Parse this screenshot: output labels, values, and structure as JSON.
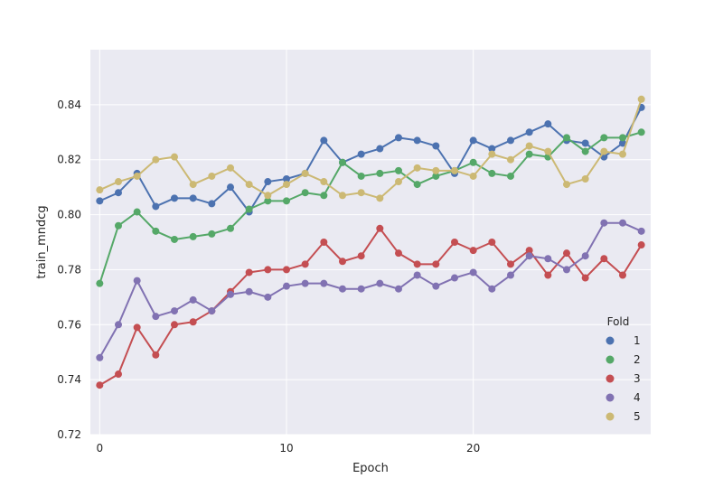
{
  "chart_data": {
    "type": "line",
    "xlabel": "Epoch",
    "ylabel": "train_mndcg",
    "xlim": [
      -0.5,
      29.5
    ],
    "ylim": [
      0.72,
      0.86
    ],
    "x_ticks": [
      0,
      10,
      20
    ],
    "y_ticks": [
      0.72,
      0.74,
      0.76,
      0.78,
      0.8,
      0.82,
      0.84
    ],
    "y_tick_labels": [
      "0.72",
      "0.74",
      "0.76",
      "0.78",
      "0.80",
      "0.82",
      "0.84"
    ],
    "grid": true,
    "background": "#eaeaf2",
    "legend": {
      "title": "Fold",
      "placement": "lower-right"
    },
    "x": [
      0,
      1,
      2,
      3,
      4,
      5,
      6,
      7,
      8,
      9,
      10,
      11,
      12,
      13,
      14,
      15,
      16,
      17,
      18,
      19,
      20,
      21,
      22,
      23,
      24,
      25,
      26,
      27,
      28,
      29
    ],
    "series": [
      {
        "name": "1",
        "color": "#4c72b0",
        "values": [
          0.805,
          0.808,
          0.815,
          0.803,
          0.806,
          0.806,
          0.804,
          0.81,
          0.801,
          0.812,
          0.813,
          0.815,
          0.827,
          0.819,
          0.822,
          0.824,
          0.828,
          0.827,
          0.825,
          0.815,
          0.827,
          0.824,
          0.827,
          0.83,
          0.833,
          0.827,
          0.826,
          0.821,
          0.826,
          0.839
        ]
      },
      {
        "name": "2",
        "color": "#55a868",
        "values": [
          0.775,
          0.796,
          0.801,
          0.794,
          0.791,
          0.792,
          0.793,
          0.795,
          0.802,
          0.805,
          0.805,
          0.808,
          0.807,
          0.819,
          0.814,
          0.815,
          0.816,
          0.811,
          0.814,
          0.816,
          0.819,
          0.815,
          0.814,
          0.822,
          0.821,
          0.828,
          0.823,
          0.828,
          0.828,
          0.83
        ]
      },
      {
        "name": "3",
        "color": "#c44e52",
        "values": [
          0.738,
          0.742,
          0.759,
          0.749,
          0.76,
          0.761,
          0.765,
          0.772,
          0.779,
          0.78,
          0.78,
          0.782,
          0.79,
          0.783,
          0.785,
          0.795,
          0.786,
          0.782,
          0.782,
          0.79,
          0.787,
          0.79,
          0.782,
          0.787,
          0.778,
          0.786,
          0.777,
          0.784,
          0.778,
          0.789
        ]
      },
      {
        "name": "4",
        "color": "#8172b2",
        "values": [
          0.748,
          0.76,
          0.776,
          0.763,
          0.765,
          0.769,
          0.765,
          0.771,
          0.772,
          0.77,
          0.774,
          0.775,
          0.775,
          0.773,
          0.773,
          0.775,
          0.773,
          0.778,
          0.774,
          0.777,
          0.779,
          0.773,
          0.778,
          0.785,
          0.784,
          0.78,
          0.785,
          0.797,
          0.797,
          0.794
        ]
      },
      {
        "name": "5",
        "color": "#ccb974",
        "values": [
          0.809,
          0.812,
          0.814,
          0.82,
          0.821,
          0.811,
          0.814,
          0.817,
          0.811,
          0.807,
          0.811,
          0.815,
          0.812,
          0.807,
          0.808,
          0.806,
          0.812,
          0.817,
          0.816,
          0.816,
          0.814,
          0.822,
          0.82,
          0.825,
          0.823,
          0.811,
          0.813,
          0.823,
          0.822,
          0.842
        ]
      }
    ]
  }
}
